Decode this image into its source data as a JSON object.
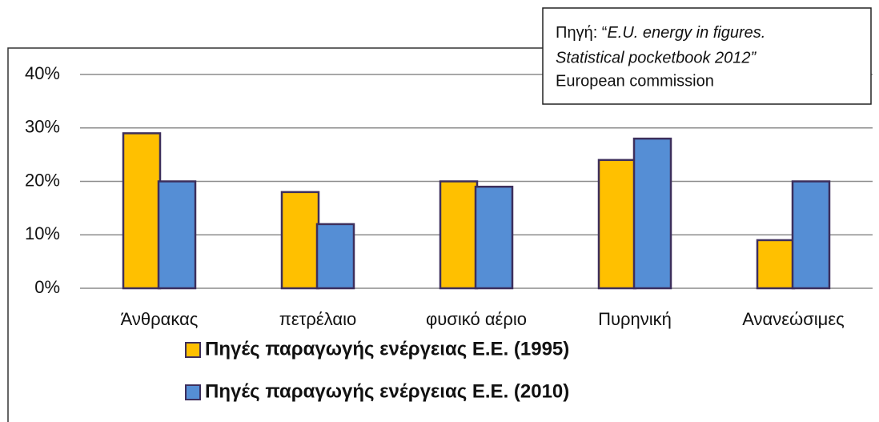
{
  "chart_data": {
    "type": "bar",
    "source": {
      "prefix": "Πηγή: “",
      "italic": [
        "E.U. energy in figures.",
        "Statistical pocketbook 2012”"
      ],
      "plain": "European commission"
    },
    "categories": [
      "Άνθρακας",
      "πετρέλαιο",
      "φυσικό αέριο",
      "Πυρηνική",
      "Ανανεώσιμες"
    ],
    "series": [
      {
        "name": "Πηγές παραγωγής ενέργειας Ε.Ε. (1995)",
        "color": "#ffc000",
        "values": [
          29,
          18,
          20,
          24,
          9
        ]
      },
      {
        "name": "Πηγές παραγωγής ενέργειας Ε.Ε. (2010)",
        "color": "#558ed5",
        "values": [
          20,
          12,
          19,
          28,
          20
        ]
      }
    ],
    "ylim": [
      0,
      40
    ],
    "yticks": [
      {
        "value": 0,
        "label": "0%"
      },
      {
        "value": 10,
        "label": "10%"
      },
      {
        "value": 20,
        "label": "20%"
      },
      {
        "value": 30,
        "label": "30%"
      },
      {
        "value": 40,
        "label": "40%"
      }
    ],
    "grid": true
  }
}
